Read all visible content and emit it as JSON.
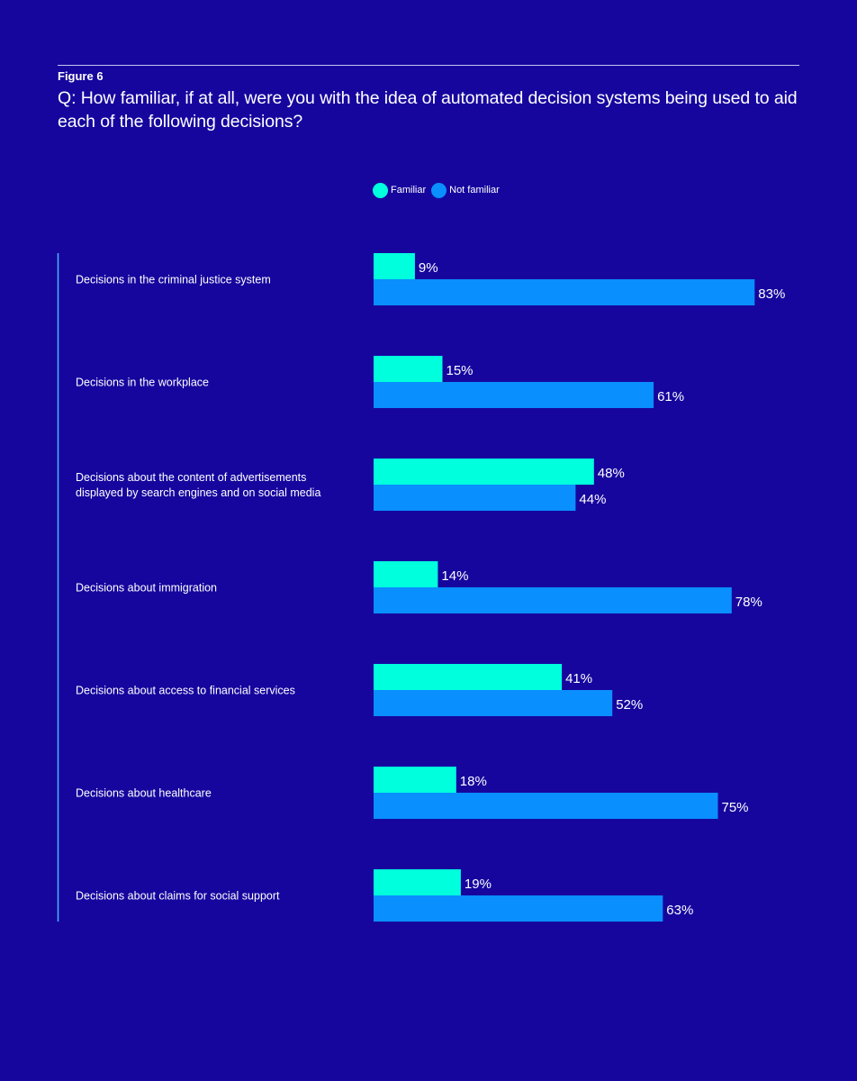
{
  "figure": {
    "label": "Figure 6",
    "question": "Q: How familiar, if at all, were you with the idea of automated decision systems being used to aid each of the following decisions?"
  },
  "colors": {
    "background": "#16069e",
    "familiar": "#00ffdd",
    "not_familiar": "#0a8fff",
    "axis_line": "#4fb3ff"
  },
  "legend": {
    "items": [
      {
        "label": "Familiar",
        "color": "#00ffdd"
      },
      {
        "label": "Not familiar",
        "color": "#0a8fff"
      }
    ],
    "placement": "top-center"
  },
  "chart_data": {
    "type": "bar",
    "orientation": "horizontal",
    "categories": [
      [
        "Decisions in the criminal justice system"
      ],
      [
        "Decisions in the workplace"
      ],
      [
        "Decisions about the content of advertisements",
        "displayed by search engines and on social media"
      ],
      [
        "Decisions about immigration"
      ],
      [
        "Decisions about access to financial services"
      ],
      [
        "Decisions about healthcare"
      ],
      [
        "Decisions about claims for social support"
      ]
    ],
    "series": [
      {
        "name": "Familiar",
        "color": "#00ffdd",
        "values": [
          9,
          15,
          48,
          14,
          41,
          18,
          19
        ],
        "labels": [
          "9%",
          "15%",
          "48%",
          "14%",
          "41%",
          "18%",
          "19%"
        ]
      },
      {
        "name": "Not familiar",
        "color": "#0a8fff",
        "values": [
          83,
          61,
          44,
          78,
          52,
          75,
          63
        ],
        "labels": [
          "83%",
          "61%",
          "44%",
          "78%",
          "52%",
          "75%",
          "63%"
        ]
      }
    ],
    "xlim": [
      0,
      100
    ],
    "unit": "%",
    "grid": false
  }
}
